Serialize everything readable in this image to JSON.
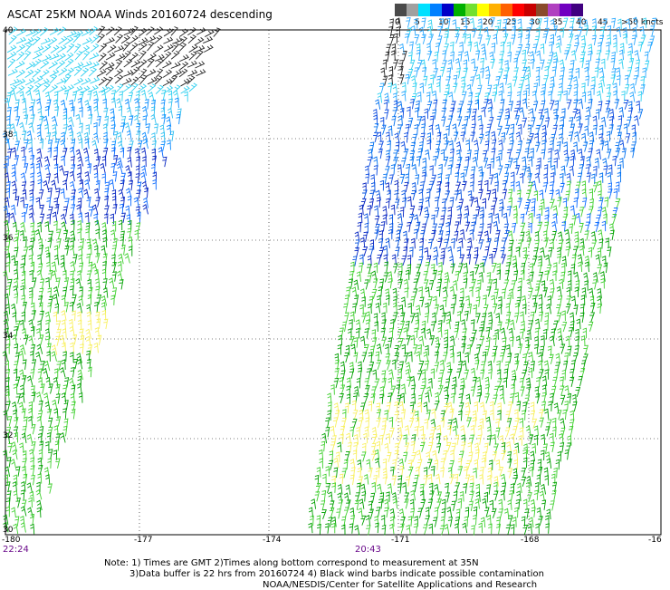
{
  "title": "ASCAT 25KM NOAA Winds 20160724 descending",
  "color_scale": {
    "labels": [
      "0",
      "5",
      "10",
      "15",
      "20",
      "25",
      "30",
      "35",
      "40",
      "45",
      ">50 knots"
    ],
    "colors": [
      "#4a4a4a",
      "#a0a0a0",
      "#00e0ff",
      "#0080ff",
      "#0000c8",
      "#00b000",
      "#70e030",
      "#ffff00",
      "#ffb000",
      "#ff6000",
      "#ff0000",
      "#c80000",
      "#8a4a2a",
      "#b040c0",
      "#7000c0",
      "#400080"
    ]
  },
  "axes": {
    "lat_labels": [
      "40",
      "38",
      "36",
      "34",
      "32",
      "30"
    ],
    "lon_labels": [
      "-180",
      "-177",
      "-174",
      "-171",
      "-168",
      "-16"
    ]
  },
  "pass_times": {
    "left": "22:24",
    "right": "20:43"
  },
  "notes": {
    "line1": "Note: 1) Times are GMT 2)Times along bottom correspond to measurement at 35N",
    "line2": "3)Data buffer is 22 hrs from 20160724 4) Black wind barbs indicate possible contamination",
    "line3": "NOAA/NESDIS/Center for Satellite Applications and Research"
  }
}
